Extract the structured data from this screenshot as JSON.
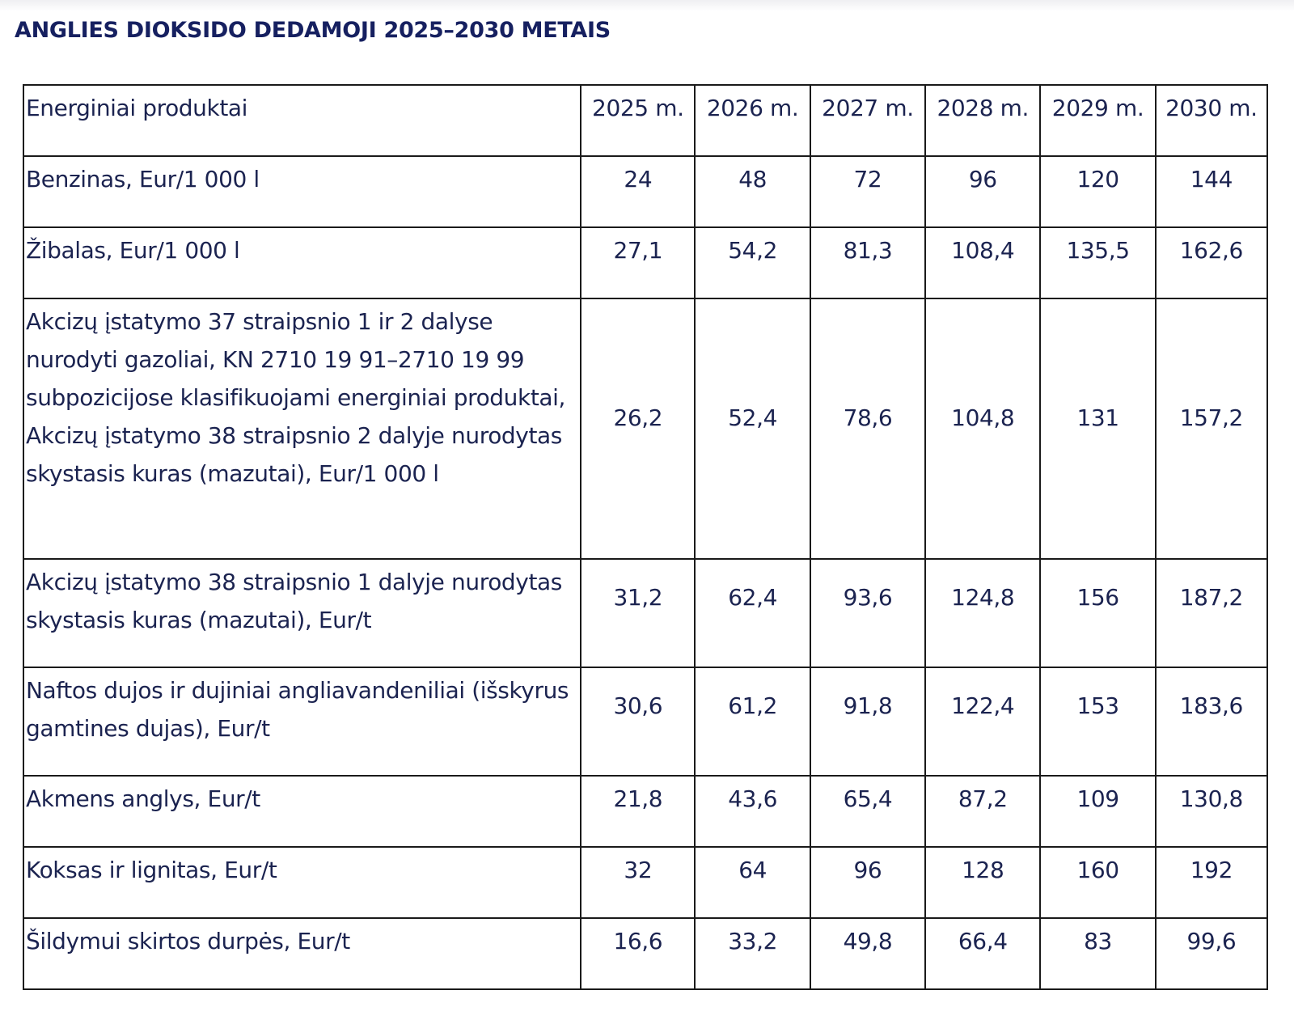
{
  "title": "ANGLIES DIOKSIDO DEDAMOJI 2025–2030 METAIS",
  "table": {
    "header": [
      "Energiniai produktai",
      "2025 m.",
      "2026 m.",
      "2027 m.",
      "2028 m.",
      "2029 m.",
      "2030 m."
    ],
    "rows": [
      {
        "label": "Benzinas, Eur/1 000 l",
        "values": [
          "24",
          "48",
          "72",
          "96",
          "120",
          "144"
        ]
      },
      {
        "label": "Žibalas, Eur/1 000 l",
        "values": [
          "27,1",
          "54,2",
          "81,3",
          "108,4",
          "135,5",
          "162,6"
        ]
      },
      {
        "label": "Akcizų įstatymo 37 straipsnio 1 ir 2 dalyse nurodyti gazoliai, KN 2710 19 91–2710 19 99 subpozicijose klasifikuojami energiniai produktai, Akcizų įstatymo 38 straipsnio 2 dalyje nurodytas skystasis kuras (mazutai), Eur/1 000 l",
        "values": [
          "26,2",
          "52,4",
          "78,6",
          "104,8",
          "131",
          "157,2"
        ]
      },
      {
        "label": "Akcizų įstatymo 38 straipsnio 1 dalyje nurodytas skystasis kuras (mazutai), Eur/t",
        "values": [
          "31,2",
          "62,4",
          "93,6",
          "124,8",
          "156",
          "187,2"
        ]
      },
      {
        "label": "Naftos dujos ir dujiniai angliavandeniliai (išskyrus gamtines dujas), Eur/t",
        "values": [
          "30,6",
          "61,2",
          "91,8",
          "122,4",
          "153",
          "183,6"
        ]
      },
      {
        "label": "Akmens anglys, Eur/t",
        "values": [
          "21,8",
          "43,6",
          "65,4",
          "87,2",
          "109",
          "130,8"
        ]
      },
      {
        "label": "Koksas ir lignitas, Eur/t",
        "values": [
          "32",
          "64",
          "96",
          "128",
          "160",
          "192"
        ]
      },
      {
        "label": "Šildymui skirtos durpės, Eur/t",
        "values": [
          "16,6",
          "33,2",
          "49,8",
          "66,4",
          "83",
          "99,6"
        ]
      }
    ]
  }
}
